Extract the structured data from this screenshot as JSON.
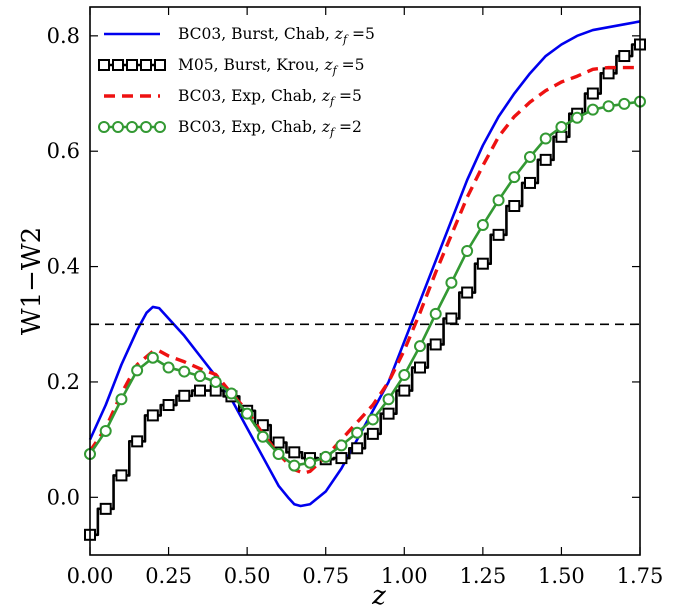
{
  "chart_data": {
    "type": "line",
    "xlabel": "z",
    "ylabel": "W1−W2",
    "xlim": [
      0.0,
      1.75
    ],
    "ylim": [
      -0.1,
      0.85
    ],
    "xticks": [
      "0.00",
      "0.25",
      "0.50",
      "0.75",
      "1.00",
      "1.25",
      "1.50",
      "1.75"
    ],
    "yticks": [
      "0.0",
      "0.2",
      "0.4",
      "0.6",
      "0.8"
    ],
    "grid": false,
    "legend_position": "top-left",
    "hline": {
      "y": 0.3,
      "style": "dashed",
      "color": "#000000"
    },
    "series": [
      {
        "name": "BC03, Burst, Chab, z_f=5",
        "label_text": "BC03, Burst, Chab, ",
        "label_sub": "f",
        "label_tail": " =5",
        "color": "#0000ee",
        "line": "solid",
        "marker": "none",
        "x": [
          0.0,
          0.05,
          0.1,
          0.15,
          0.18,
          0.2,
          0.22,
          0.25,
          0.3,
          0.35,
          0.4,
          0.45,
          0.5,
          0.55,
          0.6,
          0.63,
          0.65,
          0.67,
          0.7,
          0.75,
          0.8,
          0.85,
          0.9,
          0.95,
          1.0,
          1.05,
          1.1,
          1.15,
          1.2,
          1.25,
          1.3,
          1.35,
          1.4,
          1.45,
          1.5,
          1.55,
          1.6,
          1.65,
          1.7,
          1.75
        ],
        "y": [
          0.1,
          0.16,
          0.23,
          0.29,
          0.32,
          0.33,
          0.328,
          0.31,
          0.28,
          0.245,
          0.21,
          0.17,
          0.12,
          0.07,
          0.02,
          0.0,
          -0.012,
          -0.015,
          -0.012,
          0.01,
          0.05,
          0.1,
          0.15,
          0.2,
          0.27,
          0.34,
          0.41,
          0.48,
          0.55,
          0.61,
          0.66,
          0.7,
          0.735,
          0.765,
          0.785,
          0.8,
          0.81,
          0.815,
          0.82,
          0.825
        ]
      },
      {
        "name": "M05, Burst, Krou, z_f=5",
        "label_text": "M05, Burst, Krou, ",
        "label_sub": "f",
        "label_tail": " =5",
        "color": "#000000",
        "line": "steps-mid",
        "marker": "square",
        "x": [
          0.0,
          0.05,
          0.1,
          0.15,
          0.2,
          0.25,
          0.3,
          0.35,
          0.4,
          0.45,
          0.5,
          0.55,
          0.6,
          0.65,
          0.7,
          0.75,
          0.8,
          0.85,
          0.9,
          0.95,
          1.0,
          1.05,
          1.1,
          1.15,
          1.2,
          1.25,
          1.3,
          1.35,
          1.4,
          1.45,
          1.5,
          1.55,
          1.6,
          1.65,
          1.7,
          1.75
        ],
        "y": [
          -0.065,
          -0.02,
          0.038,
          0.097,
          0.142,
          0.16,
          0.176,
          0.185,
          0.185,
          0.175,
          0.15,
          0.125,
          0.095,
          0.078,
          0.068,
          0.066,
          0.068,
          0.085,
          0.11,
          0.145,
          0.185,
          0.225,
          0.265,
          0.31,
          0.355,
          0.405,
          0.455,
          0.505,
          0.545,
          0.585,
          0.625,
          0.665,
          0.7,
          0.735,
          0.765,
          0.785
        ]
      },
      {
        "name": "BC03, Exp, Chab, z_f=5",
        "label_text": "BC03, Exp, Chab, ",
        "label_sub": "f",
        "label_tail": " =5",
        "color": "#ee1111",
        "line": "dashed",
        "marker": "none",
        "x": [
          0.0,
          0.05,
          0.1,
          0.15,
          0.2,
          0.22,
          0.25,
          0.3,
          0.35,
          0.4,
          0.45,
          0.5,
          0.55,
          0.6,
          0.65,
          0.68,
          0.7,
          0.75,
          0.8,
          0.85,
          0.9,
          0.95,
          1.0,
          1.05,
          1.1,
          1.15,
          1.2,
          1.25,
          1.3,
          1.35,
          1.4,
          1.45,
          1.5,
          1.55,
          1.6,
          1.65,
          1.7,
          1.75
        ],
        "y": [
          0.08,
          0.12,
          0.18,
          0.23,
          0.253,
          0.254,
          0.245,
          0.235,
          0.223,
          0.213,
          0.18,
          0.15,
          0.11,
          0.075,
          0.048,
          0.042,
          0.045,
          0.07,
          0.1,
          0.13,
          0.16,
          0.2,
          0.255,
          0.32,
          0.39,
          0.455,
          0.52,
          0.575,
          0.625,
          0.66,
          0.685,
          0.705,
          0.72,
          0.73,
          0.742,
          0.745,
          0.745,
          0.745
        ]
      },
      {
        "name": "BC03, Exp, Chab, z_f=2",
        "label_text": "BC03, Exp, Chab, ",
        "label_sub": "f",
        "label_tail": " =2",
        "color": "#339933",
        "line": "solid",
        "marker": "circle",
        "x": [
          0.0,
          0.05,
          0.1,
          0.15,
          0.2,
          0.25,
          0.3,
          0.35,
          0.4,
          0.45,
          0.5,
          0.55,
          0.6,
          0.65,
          0.7,
          0.75,
          0.8,
          0.85,
          0.9,
          0.95,
          1.0,
          1.05,
          1.1,
          1.15,
          1.2,
          1.25,
          1.3,
          1.35,
          1.4,
          1.45,
          1.5,
          1.55,
          1.6,
          1.65,
          1.7,
          1.75
        ],
        "y": [
          0.075,
          0.115,
          0.17,
          0.22,
          0.242,
          0.225,
          0.218,
          0.21,
          0.2,
          0.18,
          0.145,
          0.105,
          0.075,
          0.055,
          0.06,
          0.07,
          0.09,
          0.112,
          0.135,
          0.17,
          0.212,
          0.262,
          0.318,
          0.372,
          0.427,
          0.472,
          0.515,
          0.555,
          0.59,
          0.622,
          0.642,
          0.658,
          0.672,
          0.678,
          0.682,
          0.686
        ]
      }
    ]
  }
}
